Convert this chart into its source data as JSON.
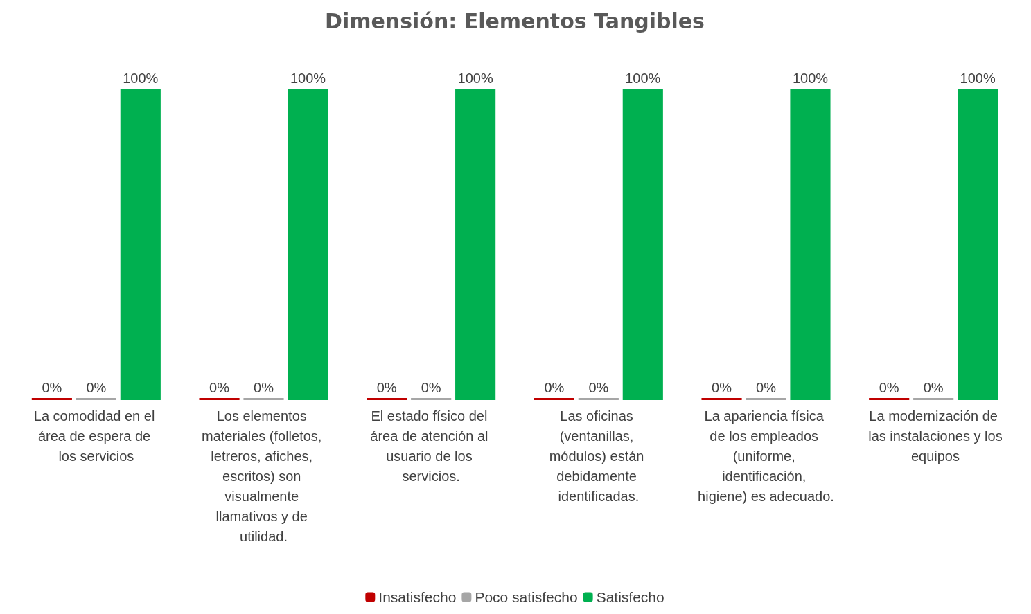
{
  "chart_data": {
    "type": "bar",
    "title": "Dimensión: Elementos Tangibles",
    "categories": [
      "La comodidad en el área de espera de los servicios",
      "Los elementos materiales (folletos, letreros, afiches, escritos) son visualmente llamativos y de utilidad.",
      "El estado físico del área de atención al usuario de los servicios.",
      "Las oficinas (ventanillas, módulos) están debidamente identificadas.",
      "La apariencia física de los empleados (uniforme, identificación, higiene) es adecuado.",
      "La modernización de las instalaciones y los equipos"
    ],
    "series": [
      {
        "name": "Insatisfecho",
        "color": "#c00000",
        "values": [
          0,
          0,
          0,
          0,
          0,
          0
        ],
        "value_labels": [
          "0%",
          "0%",
          "0%",
          "0%",
          "0%",
          "0%"
        ]
      },
      {
        "name": "Poco satisfecho",
        "color": "#a6a6a6",
        "values": [
          0,
          0,
          0,
          0,
          0,
          0
        ],
        "value_labels": [
          "0%",
          "0%",
          "0%",
          "0%",
          "0%",
          "0%"
        ]
      },
      {
        "name": "Satisfecho",
        "color": "#00b050",
        "values": [
          100,
          100,
          100,
          100,
          100,
          100
        ],
        "value_labels": [
          "100%",
          "100%",
          "100%",
          "100%",
          "100%",
          "100%"
        ]
      }
    ],
    "legend": "bottom"
  }
}
